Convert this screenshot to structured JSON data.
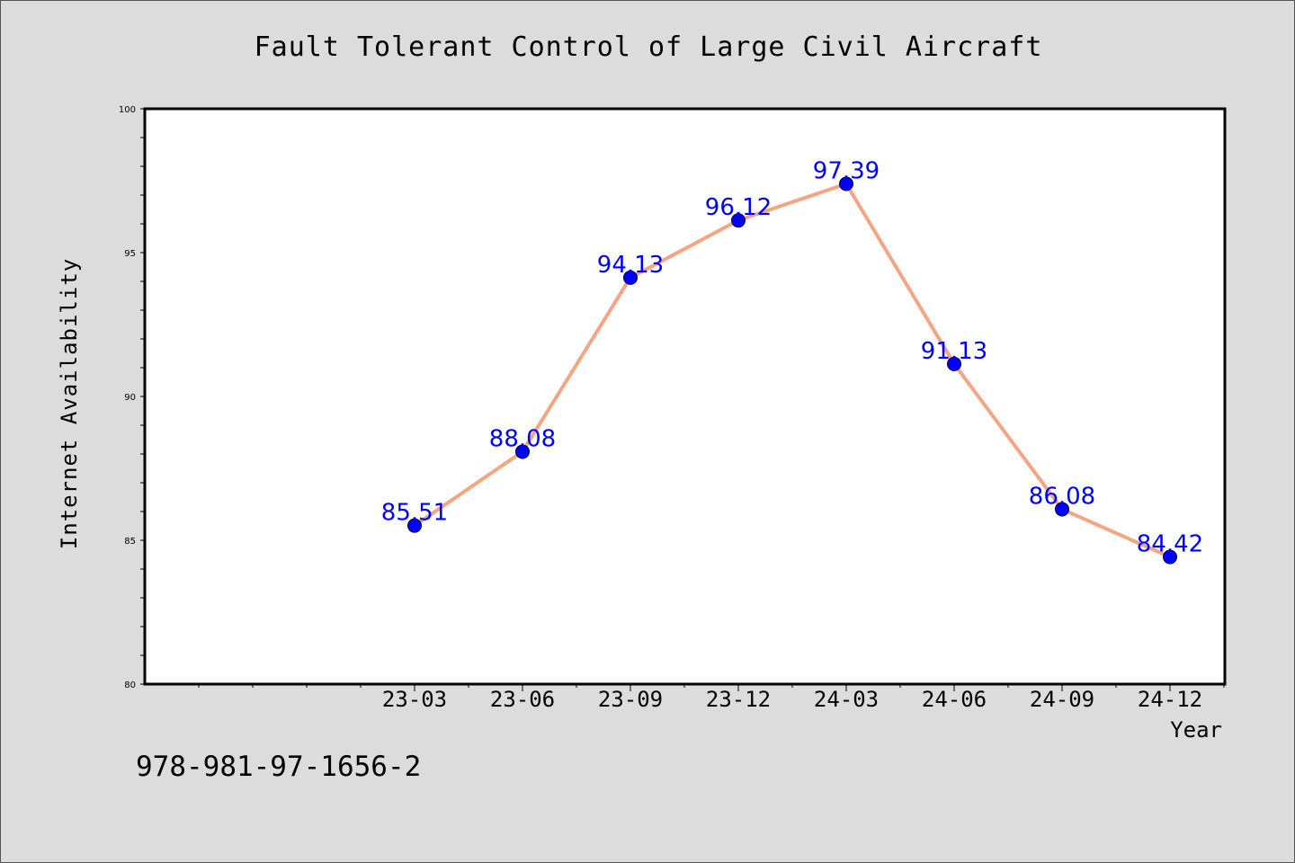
{
  "chart_data": {
    "type": "line",
    "title": "Fault Tolerant Control of Large Civil Aircraft",
    "xlabel": "Year",
    "ylabel": "Internet Availability",
    "categories": [
      "23-03",
      "23-06",
      "23-09",
      "23-12",
      "24-03",
      "24-06",
      "24-09",
      "24-12"
    ],
    "series": [
      {
        "values": [
          85.51,
          88.08,
          94.13,
          96.12,
          97.39,
          91.13,
          86.08,
          84.42
        ]
      }
    ],
    "ylim": [
      80,
      100
    ],
    "yticks": [
      "80",
      "85",
      "90",
      "95",
      "100"
    ],
    "grid": false,
    "line_color": "#f4a582",
    "marker_color": "#0000ff",
    "label_color": "#0000ff"
  },
  "footnote": "978-981-97-1656-2"
}
